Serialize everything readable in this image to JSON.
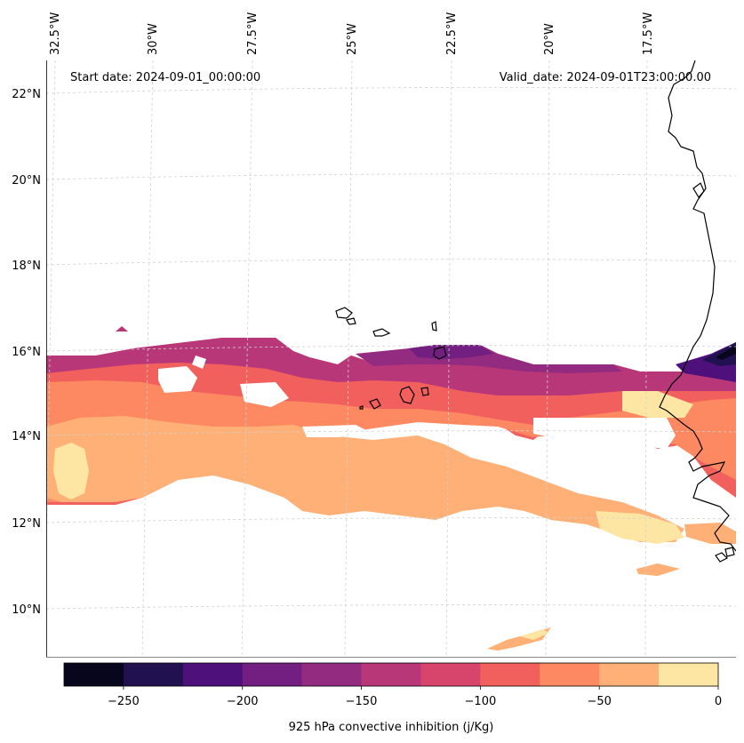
{
  "annotations": {
    "start_date": "Start date: 2024-09-01_00:00:00",
    "valid_date": "Valid_date: 2024-09-01T23:00:00.00"
  },
  "lon_labels": [
    "32.5°W",
    "30°W",
    "27.5°W",
    "25°W",
    "22.5°W",
    "20°W",
    "17.5°W"
  ],
  "lat_labels": [
    "22°N",
    "20°N",
    "18°N",
    "16°N",
    "14°N",
    "12°N",
    "10°N"
  ],
  "colorbar": {
    "label": "925 hPa convective inhibition (j/Kg)",
    "ticks": [
      "−250",
      "−200",
      "−150",
      "−100",
      "−50",
      "0"
    ],
    "levels": [
      -275,
      -250,
      -225,
      -200,
      -175,
      -150,
      -125,
      -100,
      -75,
      -50,
      -25,
      0
    ],
    "colors": [
      "#07061c",
      "#221150",
      "#4e117b",
      "#721f81",
      "#932b80",
      "#b73779",
      "#d8456c",
      "#f1605d",
      "#fc8961",
      "#feb077",
      "#fde6a4"
    ]
  },
  "colors": {
    "grid": "#d0d0d0",
    "coast": "#000000",
    "frame": "#888888"
  }
}
